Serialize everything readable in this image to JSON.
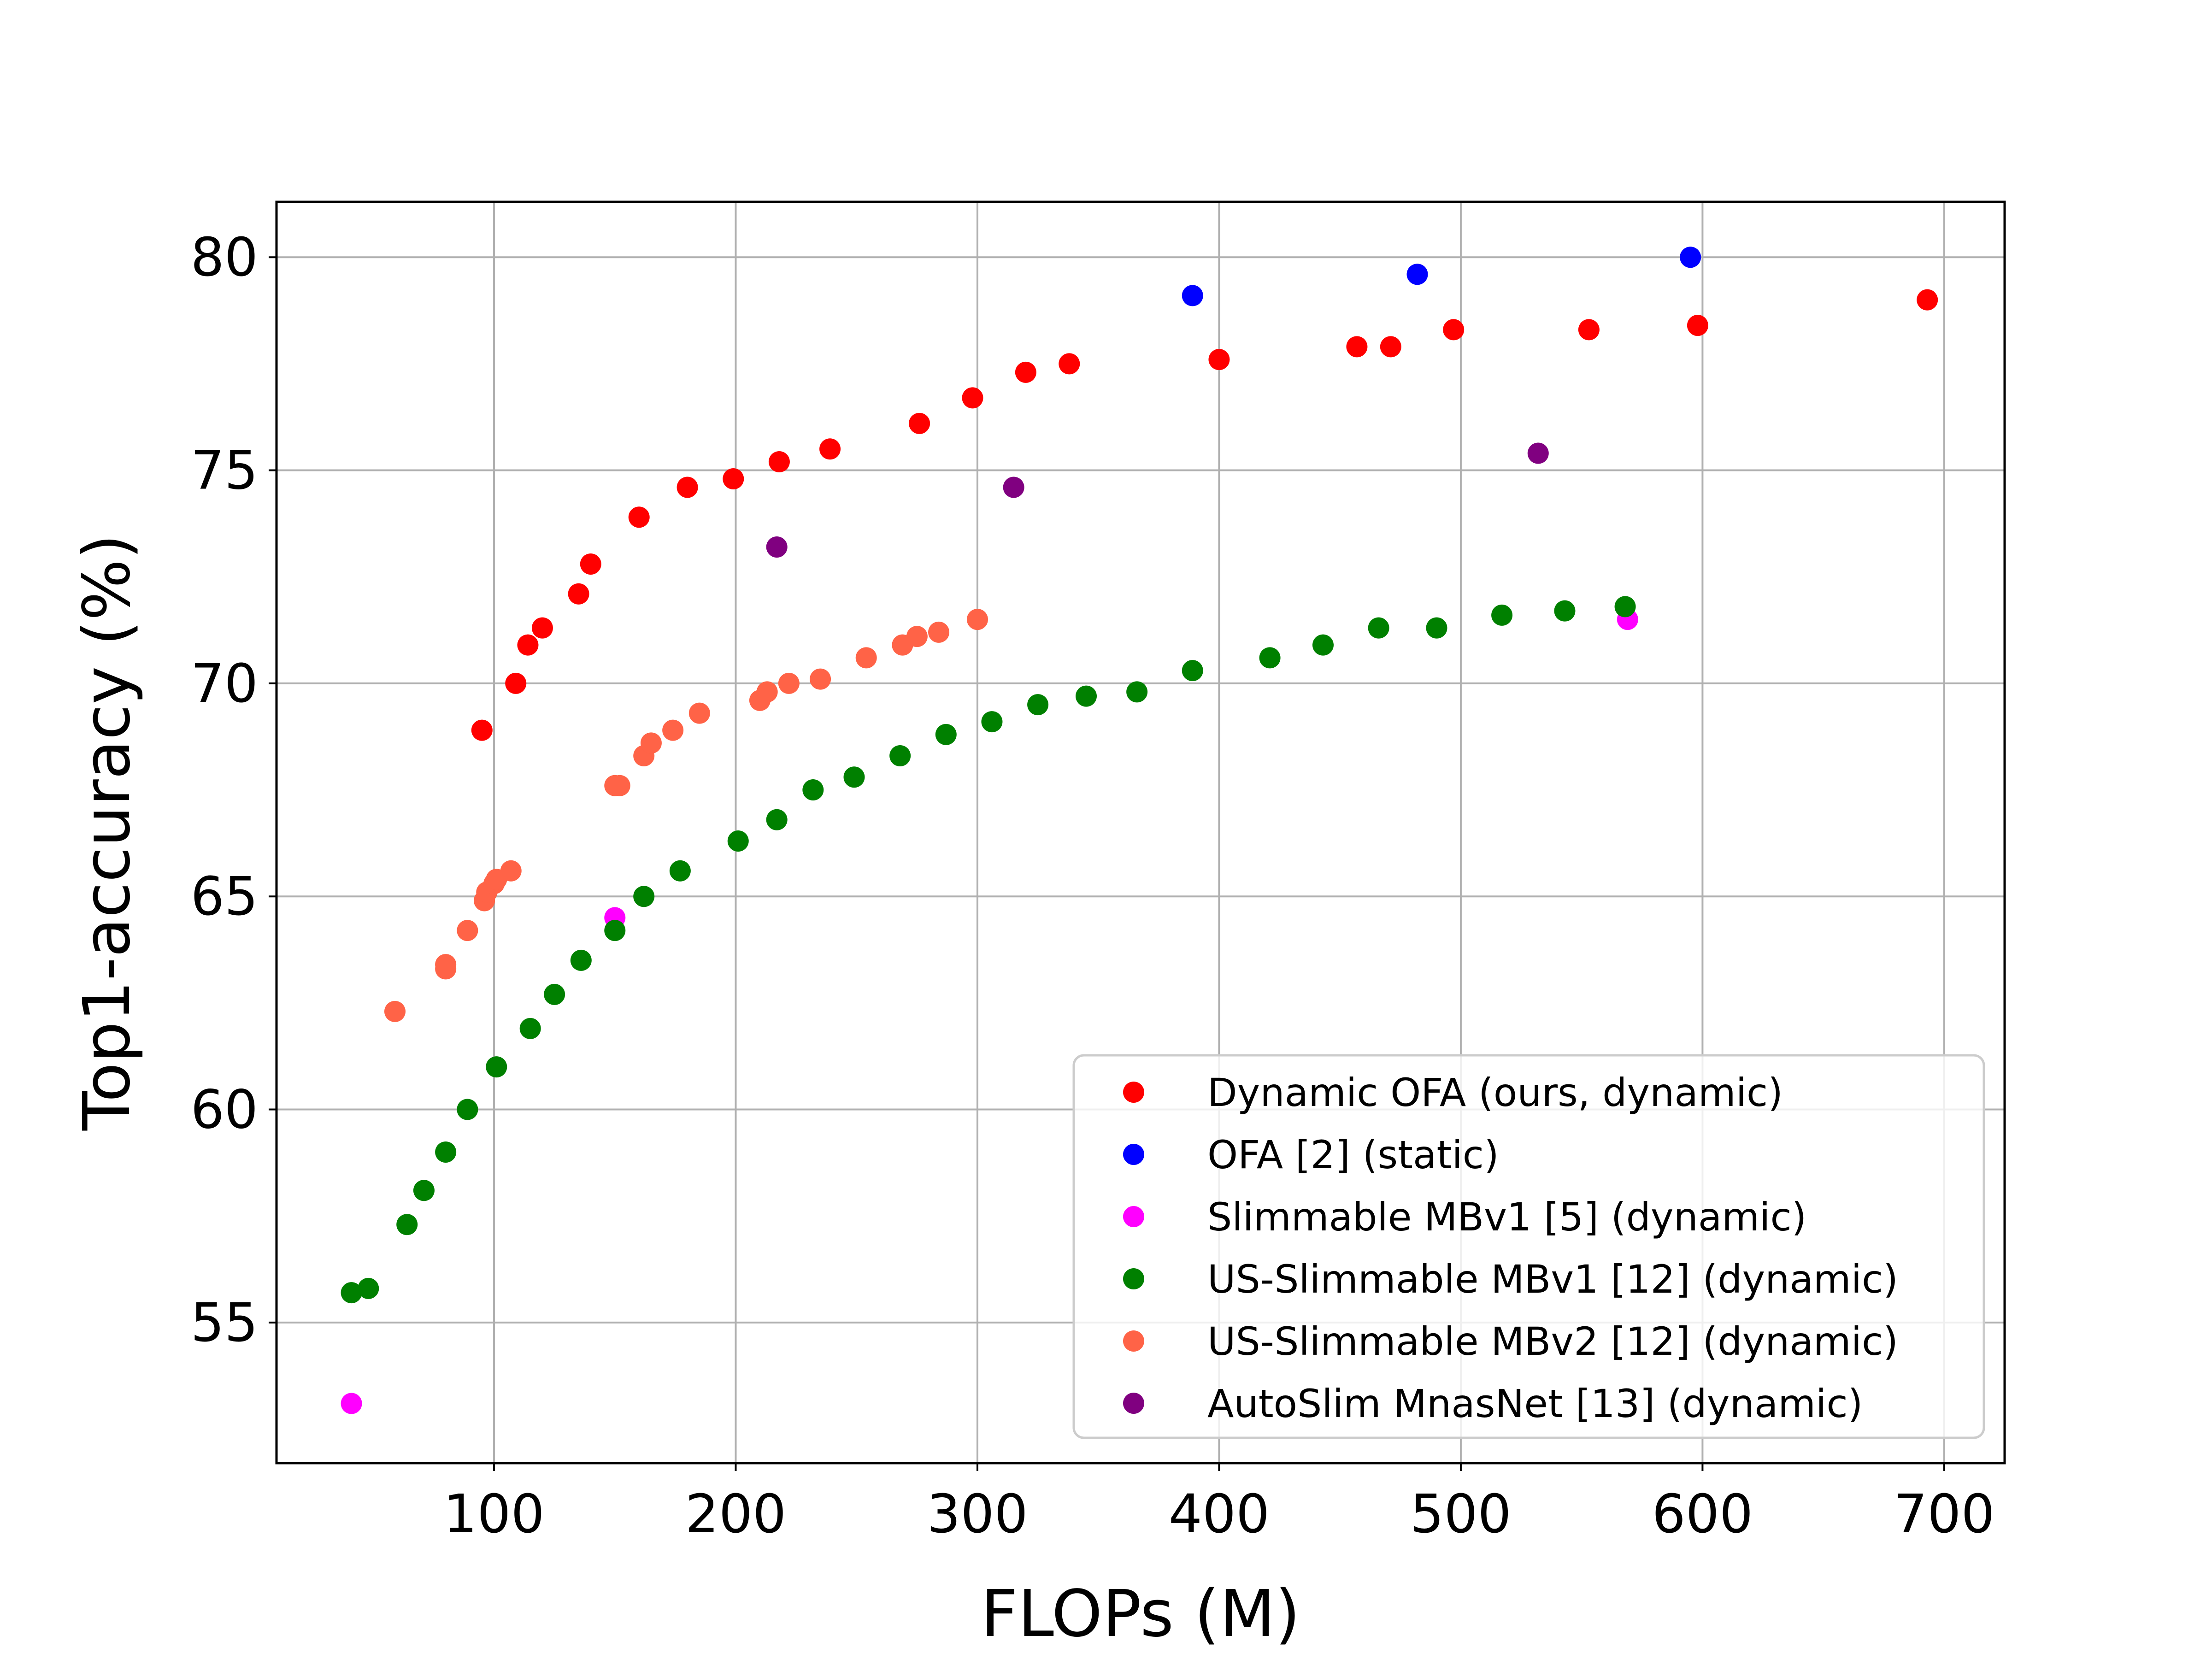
{
  "chart_data": {
    "type": "scatter",
    "xlabel": "FLOPs (M)",
    "ylabel": "Top1-accuracy (%)",
    "xlim": [
      10,
      725
    ],
    "ylim": [
      51.7,
      81.3
    ],
    "xticks": [
      100,
      200,
      300,
      400,
      500,
      600,
      700
    ],
    "yticks": [
      55,
      60,
      65,
      70,
      75,
      80
    ],
    "grid": true,
    "legend_position": "lower-right",
    "series": [
      {
        "name": "Dynamic OFA (ours, dynamic)",
        "color": "#ff0000",
        "points": [
          [
            95,
            68.9
          ],
          [
            109,
            70.0
          ],
          [
            114,
            70.9
          ],
          [
            120,
            71.3
          ],
          [
            135,
            72.1
          ],
          [
            140,
            72.8
          ],
          [
            160,
            73.9
          ],
          [
            180,
            74.6
          ],
          [
            199,
            74.8
          ],
          [
            218,
            75.2
          ],
          [
            239,
            75.5
          ],
          [
            276,
            76.1
          ],
          [
            298,
            76.7
          ],
          [
            320,
            77.3
          ],
          [
            338,
            77.5
          ],
          [
            400,
            77.6
          ],
          [
            457,
            77.9
          ],
          [
            471,
            77.9
          ],
          [
            497,
            78.3
          ],
          [
            553,
            78.3
          ],
          [
            598,
            78.4
          ],
          [
            693,
            79.0
          ]
        ]
      },
      {
        "name": "OFA [2] (static)",
        "color": "#0000ff",
        "points": [
          [
            389,
            79.1
          ],
          [
            482,
            79.6
          ],
          [
            595,
            80.0
          ]
        ]
      },
      {
        "name": "Slimmable MBv1 [5] (dynamic)",
        "color": "#ff00ff",
        "points": [
          [
            41,
            53.1
          ],
          [
            150,
            64.5
          ],
          [
            569,
            71.5
          ]
        ]
      },
      {
        "name": "US-Slimmable MBv1 [12] (dynamic)",
        "color": "#008000",
        "points": [
          [
            41,
            55.7
          ],
          [
            48,
            55.8
          ],
          [
            64,
            57.3
          ],
          [
            71,
            58.1
          ],
          [
            80,
            59.0
          ],
          [
            89,
            60.0
          ],
          [
            101,
            61.0
          ],
          [
            115,
            61.9
          ],
          [
            125,
            62.7
          ],
          [
            136,
            63.5
          ],
          [
            150,
            64.2
          ],
          [
            162,
            65.0
          ],
          [
            177,
            65.6
          ],
          [
            201,
            66.3
          ],
          [
            217,
            66.8
          ],
          [
            232,
            67.5
          ],
          [
            249,
            67.8
          ],
          [
            268,
            68.3
          ],
          [
            287,
            68.8
          ],
          [
            306,
            69.1
          ],
          [
            325,
            69.5
          ],
          [
            345,
            69.7
          ],
          [
            366,
            69.8
          ],
          [
            389,
            70.3
          ],
          [
            421,
            70.6
          ],
          [
            443,
            70.9
          ],
          [
            466,
            71.3
          ],
          [
            490,
            71.3
          ],
          [
            517,
            71.6
          ],
          [
            543,
            71.7
          ],
          [
            568,
            71.8
          ]
        ]
      },
      {
        "name": "US-Slimmable MBv2 [12] (dynamic)",
        "color": "#ff6347",
        "points": [
          [
            59,
            62.3
          ],
          [
            80,
            63.3
          ],
          [
            80,
            63.4
          ],
          [
            89,
            64.2
          ],
          [
            96,
            64.9
          ],
          [
            97,
            65.1
          ],
          [
            100,
            65.3
          ],
          [
            101,
            65.4
          ],
          [
            107,
            65.6
          ],
          [
            150,
            67.6
          ],
          [
            152,
            67.6
          ],
          [
            162,
            68.3
          ],
          [
            165,
            68.6
          ],
          [
            174,
            68.9
          ],
          [
            185,
            69.3
          ],
          [
            210,
            69.6
          ],
          [
            213,
            69.8
          ],
          [
            222,
            70.0
          ],
          [
            235,
            70.1
          ],
          [
            254,
            70.6
          ],
          [
            269,
            70.9
          ],
          [
            275,
            71.1
          ],
          [
            284,
            71.2
          ],
          [
            300,
            71.5
          ]
        ]
      },
      {
        "name": "AutoSlim MnasNet [13] (dynamic)",
        "color": "#800080",
        "points": [
          [
            217,
            73.2
          ],
          [
            315,
            74.6
          ],
          [
            532,
            75.4
          ]
        ]
      }
    ]
  }
}
